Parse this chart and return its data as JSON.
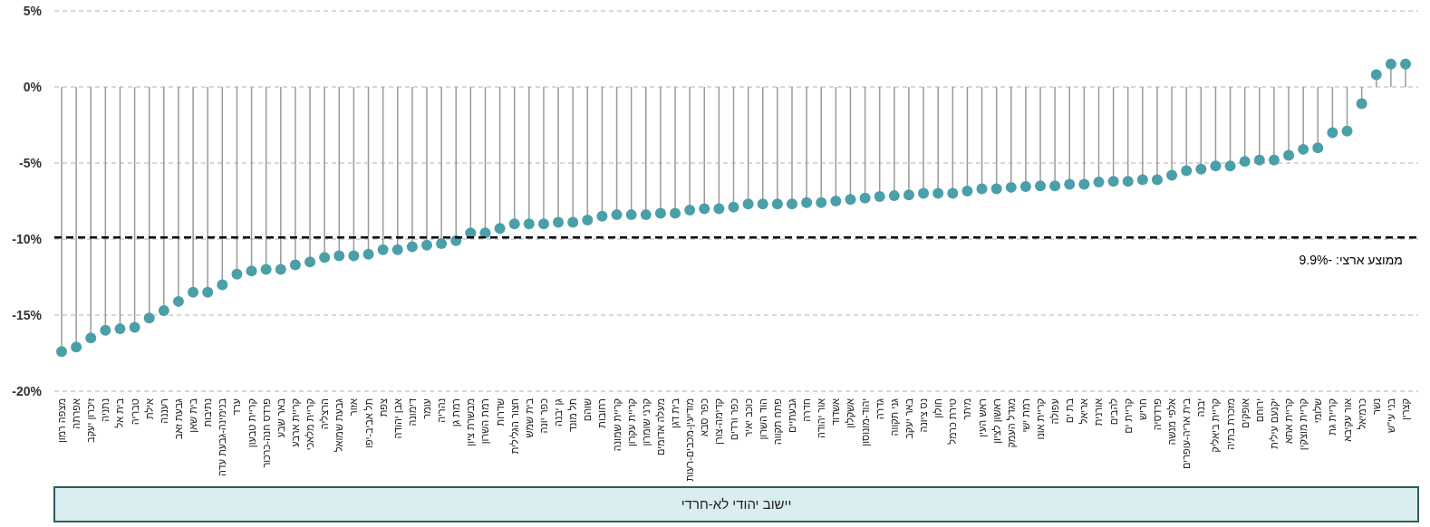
{
  "chart_data": {
    "type": "lollipop",
    "categories": [
      "מצפה רמון",
      "אפרתה",
      "זיכרון יעקב",
      "נתניה",
      "בית אל",
      "טבריה",
      "אילת",
      "רעננה",
      "גבעת זאב",
      "בית שאן",
      "נתיבות",
      "בנימינה-גבעת עדה",
      "ערד",
      "קריית טבעון",
      "פרדס חנה-כרכור",
      "באר שבע",
      "קריית ארבע",
      "קריית מלאכי",
      "הרצליה",
      "גבעת שמואל",
      "אזור",
      "תל אביב-יפו",
      "צפת",
      "אבן יהודה",
      "דימונה",
      "עומר",
      "נהריה",
      "רמת גן",
      "מבשרת ציון",
      "רמת השרון",
      "שדרות",
      "חצור הגלילית",
      "בית שמש",
      "כפר יונה",
      "גן יבנה",
      "תל מונד",
      "שוהם",
      "רחובות",
      "קריית שמונה",
      "קריית עקרון",
      "קרני שומרון",
      "מעלה אדומים",
      "בית דגן",
      "מודיעין-מכבים-רעות",
      "כפר סבא",
      "קדימה-צורן",
      "כפר ורדים",
      "כוכב יאיר",
      "הוד השרון",
      "פתח תקווה",
      "גבעתיים",
      "חדרה",
      "אור יהודה",
      "אשדוד",
      "אשקלון",
      "יהוד-מונוסון",
      "גדרה",
      "גני תקווה",
      "באר יעקב",
      "נס ציונה",
      "חולון",
      "טירת כרמל",
      "מיתר",
      "ראש העין",
      "ראשון לציון",
      "מגדל העמק",
      "רמת ישי",
      "קריית אונו",
      "עפולה",
      "בת ים",
      "אריאל",
      "אורנית",
      "להבים",
      "קריית ים",
      "חריש",
      "פרדסיה",
      "אלפי מנשה",
      "בית אריה-עופרים",
      "יבנה",
      "קריית ביאליק",
      "מזכרת בתיה",
      "אופקים",
      "ירוחם",
      "יקנעם עילית",
      "קריית אתא",
      "קריית מוצקין",
      "שלומי",
      "קריית גת",
      "אור עקיבא",
      "כרמיאל",
      "נשר",
      "בני עי\"ש",
      "קצרין"
    ],
    "values": [
      -17.4,
      -17.1,
      -16.5,
      -16.0,
      -15.9,
      -15.8,
      -15.2,
      -14.7,
      -14.1,
      -13.5,
      -13.5,
      -13.0,
      -12.3,
      -12.1,
      -12.0,
      -12.0,
      -11.7,
      -11.5,
      -11.2,
      -11.1,
      -11.1,
      -11.0,
      -10.7,
      -10.7,
      -10.5,
      -10.4,
      -10.3,
      -10.1,
      -9.6,
      -9.6,
      -9.3,
      -9.0,
      -9.0,
      -9.0,
      -8.9,
      -8.9,
      -8.75,
      -8.5,
      -8.4,
      -8.4,
      -8.4,
      -8.3,
      -8.3,
      -8.1,
      -8.0,
      -8.0,
      -7.9,
      -7.7,
      -7.7,
      -7.7,
      -7.7,
      -7.6,
      -7.6,
      -7.5,
      -7.4,
      -7.3,
      -7.2,
      -7.15,
      -7.1,
      -7.0,
      -7.0,
      -7.0,
      -6.85,
      -6.7,
      -6.7,
      -6.6,
      -6.55,
      -6.5,
      -6.5,
      -6.4,
      -6.4,
      -6.25,
      -6.2,
      -6.2,
      -6.1,
      -6.1,
      -5.8,
      -5.5,
      -5.4,
      -5.2,
      -5.2,
      -4.9,
      -4.8,
      -4.8,
      -4.5,
      -4.1,
      -4.0,
      -3.0,
      -2.9,
      -1.1,
      0.8,
      1.5,
      1.5
    ],
    "color": "#4a9fa8",
    "ylim": [
      -20,
      5
    ],
    "yticks": [
      {
        "value": 5,
        "label": "5%"
      },
      {
        "value": 0,
        "label": "0%"
      },
      {
        "value": -5,
        "label": "-5%"
      },
      {
        "value": -10,
        "label": "-10%"
      },
      {
        "value": -15,
        "label": "-15%"
      },
      {
        "value": -20,
        "label": "-20%"
      }
    ],
    "grid": "y",
    "marker": "circle",
    "ref_lines": [
      {
        "axis": "y",
        "value": -9.9,
        "label": "ממוצע ארצי:  -9.9%",
        "color": "#000000",
        "line_style": "dashed"
      }
    ],
    "annotations": [
      "יישוב יהודי לא-חרדי"
    ]
  }
}
